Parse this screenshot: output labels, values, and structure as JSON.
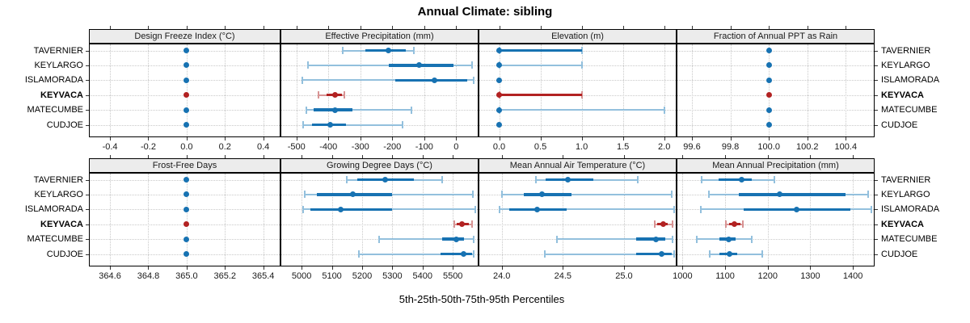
{
  "title": "Annual Climate: sibling",
  "caption": "5th-25th-50th-75th-95th Percentiles",
  "stations": [
    {
      "label": "TAVERNIER",
      "highlight": false
    },
    {
      "label": "KEYLARGO",
      "highlight": false
    },
    {
      "label": "ISLAMORADA",
      "highlight": false
    },
    {
      "label": "KEYVACA",
      "highlight": true
    },
    {
      "label": "MATECUMBE",
      "highlight": false
    },
    {
      "label": "CUDJOE",
      "highlight": false
    }
  ],
  "percentiles": [
    "5th",
    "25th",
    "50th",
    "75th",
    "95th"
  ],
  "colors": {
    "blue": "#1772b2",
    "light_blue": "#93c0dd",
    "red": "#b22222",
    "light_red": "#d89494",
    "strip_bg": "#ececec",
    "grid": "#c9c9c9",
    "border": "#000000"
  },
  "chart_data": [
    {
      "type": "dotplot",
      "title": "Design Freeze Index (°C)",
      "row": 0,
      "col": 0,
      "xlim": [
        -0.51,
        0.49
      ],
      "tick_values": [
        -0.4,
        -0.2,
        0.0,
        0.2,
        0.4
      ],
      "tick_labels": [
        "-0.4",
        "-0.2",
        "0.0",
        "0.2",
        "0.4"
      ],
      "series": [
        [
          0,
          0,
          0,
          0,
          0
        ],
        [
          0,
          0,
          0,
          0,
          0
        ],
        [
          0,
          0,
          0,
          0,
          0
        ],
        [
          0,
          0,
          0,
          0,
          0
        ],
        [
          0,
          0,
          0,
          0,
          0
        ],
        [
          0,
          0,
          0,
          0,
          0
        ]
      ]
    },
    {
      "type": "dotplot",
      "title": "Effective Precipitation (mm)",
      "row": 0,
      "col": 1,
      "xlim": [
        -550,
        70
      ],
      "tick_values": [
        -500,
        -400,
        -300,
        -200,
        -100,
        0
      ],
      "tick_labels": [
        "-500",
        "-400",
        "-300",
        "-200",
        "-100",
        "0"
      ],
      "series": [
        [
          -355,
          -284,
          -212,
          -159,
          -133
        ],
        [
          -463,
          -212,
          -115,
          -8,
          50
        ],
        [
          -481,
          -191,
          -67,
          34,
          55
        ],
        [
          -432,
          -407,
          -379,
          -357,
          -349
        ],
        [
          -470,
          -445,
          -379,
          -324,
          -141
        ],
        [
          -480,
          -451,
          -394,
          -345,
          -167
        ]
      ]
    },
    {
      "type": "dotplot",
      "title": "Elevation (m)",
      "row": 0,
      "col": 2,
      "xlim": [
        -0.25,
        2.15
      ],
      "tick_values": [
        0.0,
        0.5,
        1.0,
        1.5,
        2.0
      ],
      "tick_labels": [
        "0.0",
        "0.5",
        "1.0",
        "1.5",
        "2.0"
      ],
      "series": [
        [
          0,
          0,
          0,
          1,
          1
        ],
        [
          0,
          0,
          0,
          0,
          1
        ],
        [
          0,
          0,
          0,
          0,
          0
        ],
        [
          0,
          0,
          0,
          1,
          1
        ],
        [
          0,
          0,
          0,
          0,
          2
        ],
        [
          0,
          0,
          0,
          0,
          0
        ]
      ]
    },
    {
      "type": "dotplot",
      "title": "Fraction of Annual PPT as Rain",
      "row": 0,
      "col": 3,
      "xlim": [
        99.52,
        100.55
      ],
      "tick_values": [
        99.6,
        99.8,
        100.0,
        100.2,
        100.4
      ],
      "tick_labels": [
        "99.6",
        "99.8",
        "100.0",
        "100.2",
        "100.4"
      ],
      "series": [
        [
          100,
          100,
          100,
          100,
          100
        ],
        [
          100,
          100,
          100,
          100,
          100
        ],
        [
          100,
          100,
          100,
          100,
          100
        ],
        [
          100,
          100,
          100,
          100,
          100
        ],
        [
          100,
          100,
          100,
          100,
          100
        ],
        [
          100,
          100,
          100,
          100,
          100
        ]
      ]
    },
    {
      "type": "dotplot",
      "title": "Frost-Free Days",
      "row": 1,
      "col": 0,
      "xlim": [
        364.49,
        365.49
      ],
      "tick_values": [
        364.6,
        364.8,
        365.0,
        365.2,
        365.4
      ],
      "tick_labels": [
        "364.6",
        "364.8",
        "365.0",
        "365.2",
        "365.4"
      ],
      "series": [
        [
          365,
          365,
          365,
          365,
          365
        ],
        [
          365,
          365,
          365,
          365,
          365
        ],
        [
          365,
          365,
          365,
          365,
          365
        ],
        [
          365,
          365,
          365,
          365,
          365
        ],
        [
          365,
          365,
          365,
          365,
          365
        ],
        [
          365,
          365,
          365,
          365,
          365
        ]
      ]
    },
    {
      "type": "dotplot",
      "title": "Growing Degree Days (°C)",
      "row": 1,
      "col": 1,
      "xlim": [
        4930,
        5585
      ],
      "tick_values": [
        5000,
        5100,
        5200,
        5300,
        5400,
        5500
      ],
      "tick_labels": [
        "5000",
        "5100",
        "5200",
        "5300",
        "5400",
        "5500"
      ],
      "series": [
        [
          5150,
          5185,
          5277,
          5370,
          5465
        ],
        [
          5010,
          5050,
          5170,
          5300,
          5565
        ],
        [
          5005,
          5030,
          5130,
          5300,
          5575
        ],
        [
          5505,
          5512,
          5530,
          5552,
          5563
        ],
        [
          5257,
          5464,
          5511,
          5537,
          5568
        ],
        [
          5190,
          5460,
          5535,
          5563,
          5570
        ]
      ]
    },
    {
      "type": "dotplot",
      "title": "Mean Annual Air Temperature (°C)",
      "row": 1,
      "col": 2,
      "xlim": [
        23.81,
        25.43
      ],
      "tick_values": [
        24.0,
        24.5,
        25.0
      ],
      "tick_labels": [
        "24.0",
        "24.5",
        "25.0"
      ],
      "series": [
        [
          24.28,
          24.36,
          24.54,
          24.75,
          25.11
        ],
        [
          24.0,
          24.18,
          24.33,
          24.57,
          25.39
        ],
        [
          23.98,
          24.06,
          24.29,
          24.53,
          25.41
        ],
        [
          25.25,
          25.27,
          25.32,
          25.36,
          25.4
        ],
        [
          24.45,
          25.1,
          25.26,
          25.34,
          25.4
        ],
        [
          24.35,
          25.1,
          25.31,
          25.39,
          25.41
        ]
      ]
    },
    {
      "type": "dotplot",
      "title": "Mean Annual Precipitation (mm)",
      "row": 1,
      "col": 3,
      "xlim": [
        986,
        1451
      ],
      "tick_values": [
        1000,
        1100,
        1200,
        1300,
        1400
      ],
      "tick_labels": [
        "1000",
        "1100",
        "1200",
        "1300",
        "1400"
      ],
      "series": [
        [
          1045,
          1084,
          1138,
          1162,
          1216
        ],
        [
          1062,
          1132,
          1228,
          1382,
          1435
        ],
        [
          1043,
          1144,
          1268,
          1394,
          1443
        ],
        [
          1101,
          1110,
          1122,
          1135,
          1141
        ],
        [
          1034,
          1087,
          1109,
          1124,
          1162
        ],
        [
          1064,
          1087,
          1111,
          1128,
          1187
        ]
      ]
    }
  ]
}
